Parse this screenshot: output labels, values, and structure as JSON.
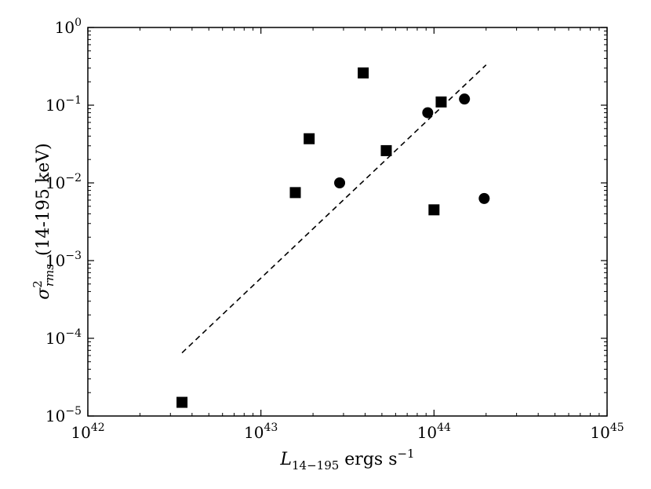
{
  "chart_data": {
    "type": "scatter",
    "title": "",
    "xlabel": {
      "symbol": "L",
      "subscript": "14−195",
      "unit_text": " ergs s",
      "unit_sup": "−1"
    },
    "ylabel": {
      "symbol": "σ",
      "superscript": "2",
      "subscript": "rms",
      "band": "(14-195 keV)"
    },
    "xscale": "log",
    "yscale": "log",
    "xlim": [
      1e+42,
      1e+45
    ],
    "ylim": [
      1e-05,
      1
    ],
    "x_ticks": [
      {
        "value": 1e+42,
        "base": "10",
        "exp": "42"
      },
      {
        "value": 1e+43,
        "base": "10",
        "exp": "43"
      },
      {
        "value": 1e+44,
        "base": "10",
        "exp": "44"
      },
      {
        "value": 1e+45,
        "base": "10",
        "exp": "45"
      }
    ],
    "y_ticks": [
      {
        "value": 1e-05,
        "base": "10",
        "exp": "−5"
      },
      {
        "value": 0.0001,
        "base": "10",
        "exp": "−4"
      },
      {
        "value": 0.001,
        "base": "10",
        "exp": "−3"
      },
      {
        "value": 0.01,
        "base": "10",
        "exp": "−2"
      },
      {
        "value": 0.1,
        "base": "10",
        "exp": "−1"
      },
      {
        "value": 1,
        "base": "10",
        "exp": "0"
      }
    ],
    "grid": false,
    "series": [
      {
        "marker": "square",
        "color": "#000000",
        "points": [
          {
            "x": 3.5e+42,
            "y": 1.5e-05
          },
          {
            "x": 1.58e+43,
            "y": 0.0075
          },
          {
            "x": 1.9e+43,
            "y": 0.037
          },
          {
            "x": 3.9e+43,
            "y": 0.26
          },
          {
            "x": 5.3e+43,
            "y": 0.026
          },
          {
            "x": 1e+44,
            "y": 0.0045
          },
          {
            "x": 1.1e+44,
            "y": 0.11
          }
        ]
      },
      {
        "marker": "circle",
        "color": "#000000",
        "points": [
          {
            "x": 2.85e+43,
            "y": 0.01
          },
          {
            "x": 9.2e+43,
            "y": 0.08
          },
          {
            "x": 1.5e+44,
            "y": 0.12
          },
          {
            "x": 1.95e+44,
            "y": 0.0063
          }
        ]
      }
    ],
    "fit_line": {
      "style": "dashed",
      "color": "#000000",
      "points": [
        {
          "x": 3.5e+42,
          "y": 6.5e-05
        },
        {
          "x": 2e+44,
          "y": 0.33
        }
      ]
    }
  }
}
